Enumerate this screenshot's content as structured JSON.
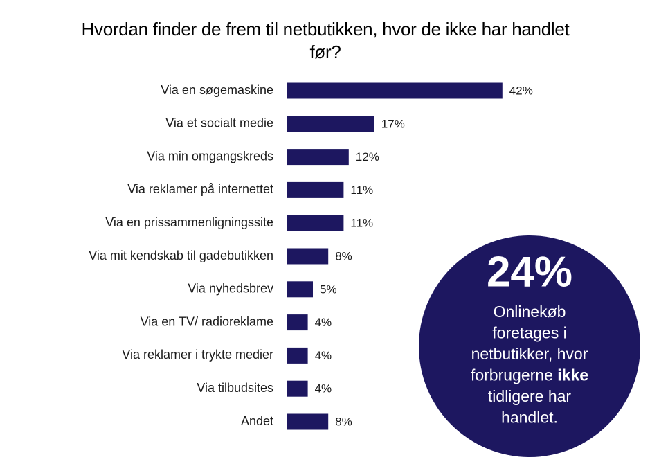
{
  "chart_data": {
    "type": "bar",
    "orientation": "horizontal",
    "title": "Hvordan finder de frem til netbutikken, hvor de ikke har handlet før?",
    "categories": [
      "Via en søgemaskine",
      "Via et socialt medie",
      "Via min omgangskreds",
      "Via reklamer på internettet",
      "Via en prissammenligningssite",
      "Via mit kendskab til gadebutikken",
      "Via nyhedsbrev",
      "Via en TV/ radioreklame",
      "Via reklamer i trykte medier",
      "Via tilbudsites",
      "Andet"
    ],
    "values": [
      42,
      17,
      12,
      11,
      11,
      8,
      5,
      4,
      4,
      4,
      8
    ],
    "value_labels": [
      "42%",
      "17%",
      "12%",
      "11%",
      "11%",
      "8%",
      "5%",
      "4%",
      "4%",
      "4%",
      "8%"
    ],
    "color": "#1d1760",
    "annotation": {
      "headline": "24%",
      "lines": [
        "Onlinekøb",
        "foretages i",
        "netbutikker, hvor",
        {
          "text": "forbrugerne",
          "bold": "ikke"
        },
        "tidligere har",
        "handlet."
      ],
      "color": "#1d1760"
    }
  }
}
